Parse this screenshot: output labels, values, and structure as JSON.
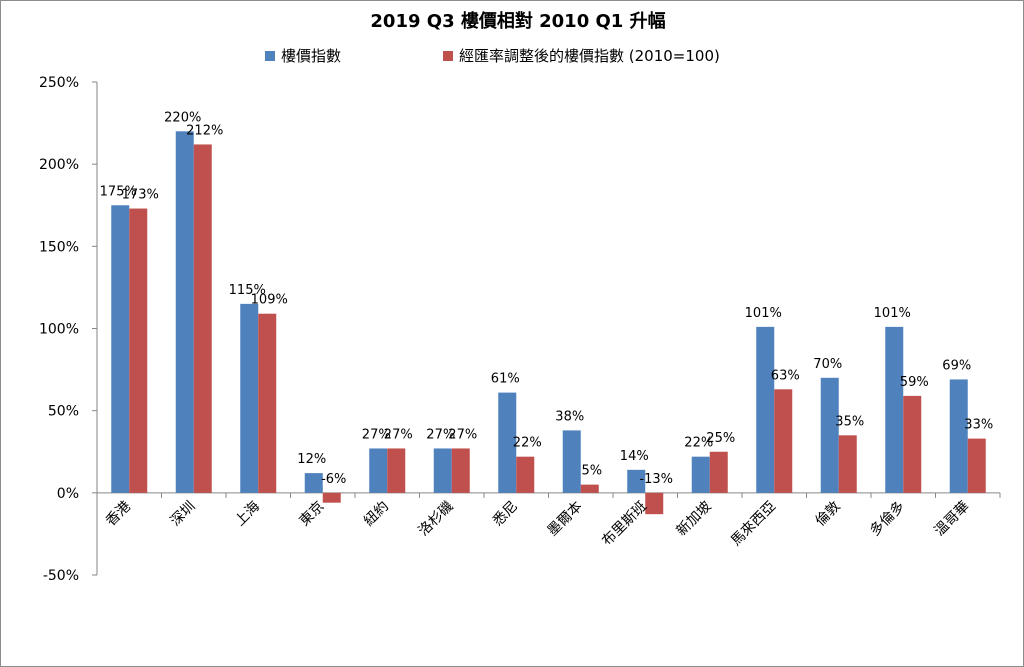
{
  "chart_data": {
    "type": "bar",
    "title": "2019 Q3 樓價相對 2010 Q1  升幅",
    "categories": [
      "香港",
      "深圳",
      "上海",
      "東京",
      "紐約",
      "洛杉磯",
      "悉尼",
      "墨爾本",
      "布里斯班",
      "新加坡",
      "馬來西亞",
      "倫敦",
      "多倫多",
      "溫哥華"
    ],
    "series": [
      {
        "name": "樓價指數",
        "color": "#4F81BD",
        "values": [
          175,
          220,
          115,
          12,
          27,
          27,
          61,
          38,
          14,
          22,
          101,
          70,
          101,
          69
        ],
        "labels": [
          "175%",
          "220%",
          "115%",
          "12%",
          "27%",
          "27%",
          "61%",
          "38%",
          "14%",
          "22%",
          "101%",
          "70%",
          "101%",
          "69%"
        ]
      },
      {
        "name": "經匯率調整後的樓價指數 (2010=100)",
        "color": "#C0504D",
        "values": [
          173,
          212,
          109,
          -6,
          27,
          27,
          22,
          5,
          -13,
          25,
          63,
          35,
          59,
          33
        ],
        "labels": [
          "173%",
          "212%",
          "109%",
          "-6%",
          "27%",
          "27%",
          "22%",
          "5%",
          "-13%",
          "25%",
          "63%",
          "35%",
          "59%",
          "33%"
        ]
      }
    ],
    "y_ticks": [
      "250%",
      "200%",
      "150%",
      "100%",
      "50%",
      "0%",
      "-50%"
    ],
    "y_tick_values": [
      250,
      200,
      150,
      100,
      50,
      0,
      -50
    ],
    "ylim": [
      -50,
      250
    ],
    "ylabel": "",
    "xlabel": "",
    "grid": false,
    "legend_position": "top"
  }
}
